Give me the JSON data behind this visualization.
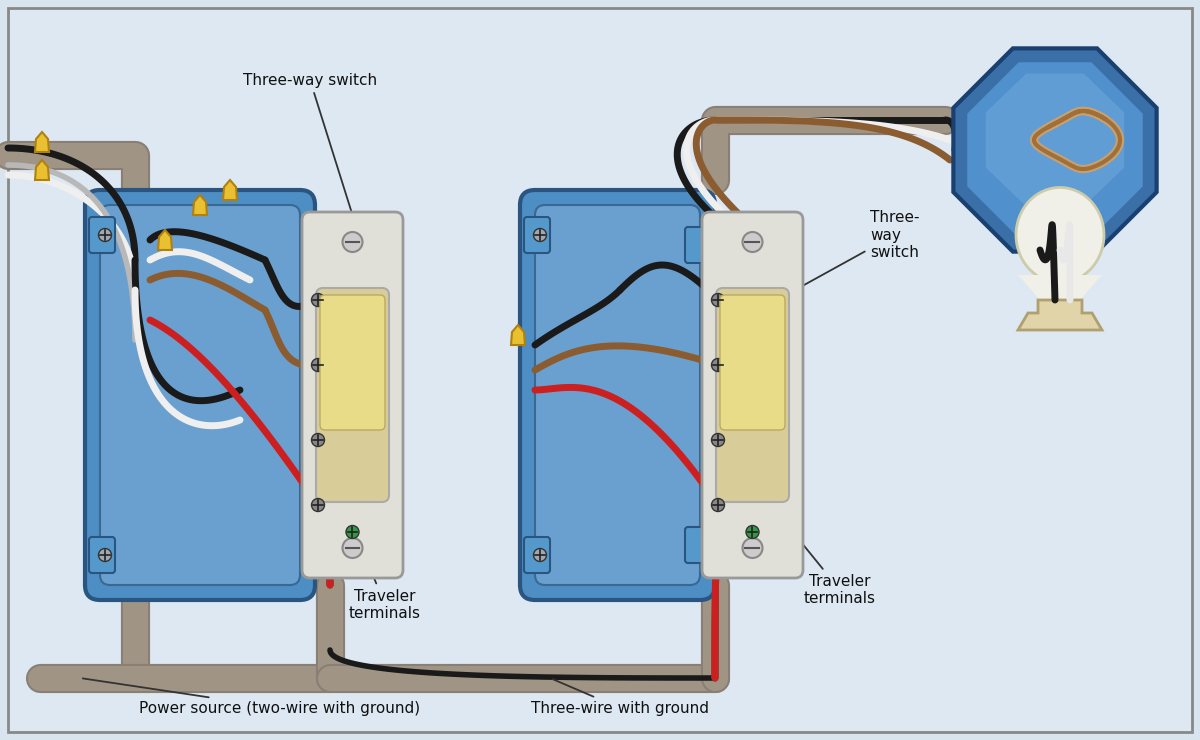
{
  "bg_color": "#d8e4ee",
  "bg_inner": "#dde8f2",
  "border_color": "#999999",
  "labels": {
    "three_way_switch_1": "Three-way switch",
    "three_way_switch_2": "Three-\nway\nswitch",
    "traveler_terminals_1": "Traveler\nterminals",
    "traveler_terminals_2": "Traveler\nterminals",
    "power_source": "Power source (two-wire with ground)",
    "three_wire": "Three-wire with ground"
  },
  "wire_conduit": "#a09585",
  "wire_conduit_dark": "#8a7f75",
  "wire_black": "#1a1a1a",
  "wire_white": "#efefef",
  "wire_red": "#cc2020",
  "wire_brown": "#8B5c30",
  "wire_gray_bare": "#b0b0b0",
  "junction_box_outer": "#3a6fa8",
  "junction_box_inner": "#5090cc",
  "junction_box_highlight": "#70aadd",
  "lamp_base_color": "#e0d4a8",
  "lamp_bulb_color": "#f0f0e8",
  "switch_box_color": "#4d8ec4",
  "switch_box_inner": "#6aa0d0",
  "switch_plate_color": "#e0e0d8",
  "switch_toggle_color": "#d8cc98",
  "wire_nut_color": "#e8c030"
}
